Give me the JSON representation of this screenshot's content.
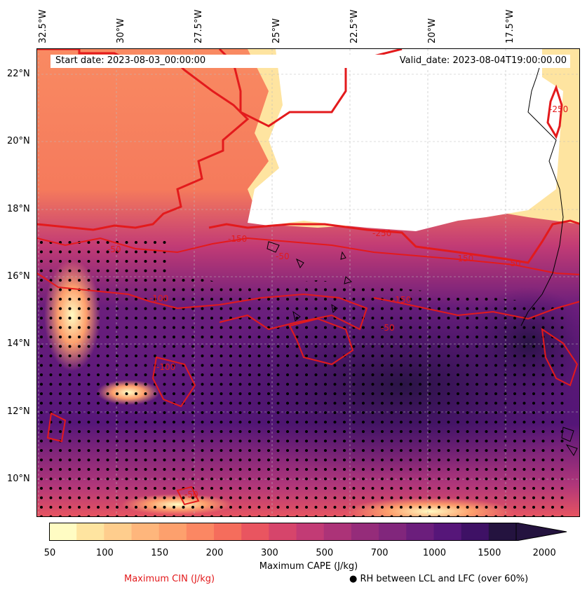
{
  "map": {
    "header": {
      "start_date": "Start date: 2023-08-03_00:00:00",
      "valid_date": "Valid_date: 2023-08-04T19:00:00.00"
    },
    "lon_labels": [
      "32.5°W",
      "30°W",
      "27.5°W",
      "25°W",
      "22.5°W",
      "20°W",
      "17.5°W"
    ],
    "lat_labels": [
      "22°N",
      "20°N",
      "18°N",
      "16°N",
      "14°N",
      "12°N",
      "10°N"
    ],
    "cin_contour_labels": [
      "-50",
      "-150",
      "-250",
      "-100",
      "-150",
      "-50",
      "-150",
      "-250",
      "-50",
      "-50",
      "-100",
      "-50"
    ],
    "stipple_meaning": "RH between LCL and LFC (over 60%)"
  },
  "colorbar": {
    "colors": [
      "#fffcc3",
      "#fee4a0",
      "#fecd8d",
      "#feb67c",
      "#fda06d",
      "#fb8763",
      "#f56d5c",
      "#e95560",
      "#d6456b",
      "#c23b75",
      "#ac3378",
      "#952c7a",
      "#81267c",
      "#6b1e7c",
      "#561679",
      "#3e1165",
      "#24133f"
    ],
    "tick_labels": [
      "50",
      "100",
      "150",
      "200",
      "300",
      "500",
      "700",
      "1000",
      "1500",
      "2000"
    ],
    "label": "Maximum CAPE (J/kg)",
    "extend": "max"
  },
  "legend": {
    "cin_label": "Maximum CIN (J/kg)",
    "cin_color": "#e31a1c",
    "rh_label": "RH between LCL and LFC (over 60%)",
    "rh_marker": "●"
  }
}
